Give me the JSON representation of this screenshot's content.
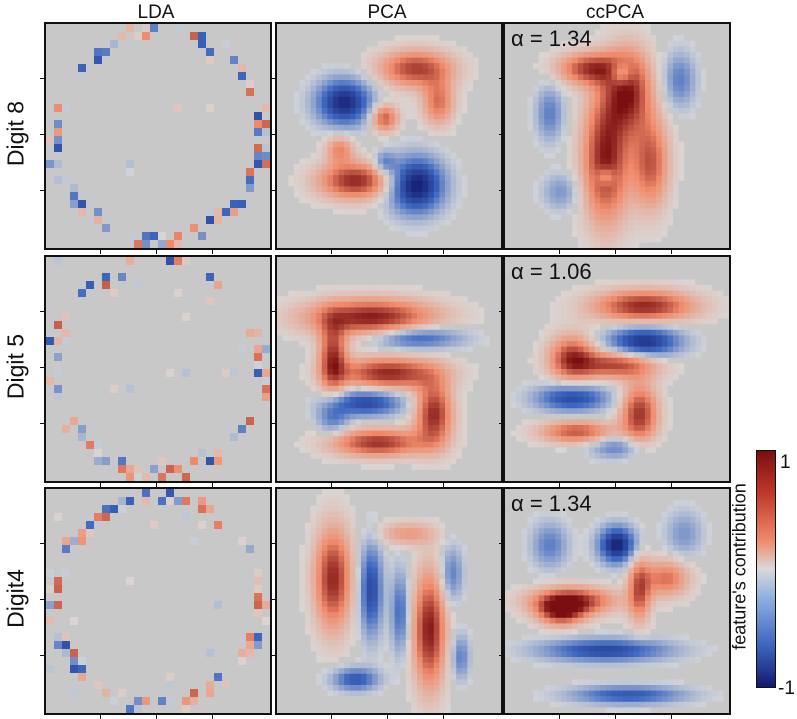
{
  "chart_data": {
    "type": "heatmap",
    "columns": [
      "LDA",
      "PCA",
      "ccPCA"
    ],
    "rows": [
      "Digit 8",
      "Digit 5",
      "Digit4"
    ],
    "panels": [
      {
        "row": "Digit 8",
        "column": "LDA",
        "annotation": ""
      },
      {
        "row": "Digit 8",
        "column": "PCA",
        "annotation": ""
      },
      {
        "row": "Digit 8",
        "column": "ccPCA",
        "annotation": "α = 1.34"
      },
      {
        "row": "Digit 5",
        "column": "LDA",
        "annotation": ""
      },
      {
        "row": "Digit 5",
        "column": "PCA",
        "annotation": ""
      },
      {
        "row": "Digit 5",
        "column": "ccPCA",
        "annotation": "α = 1.06"
      },
      {
        "row": "Digit4",
        "column": "LDA",
        "annotation": ""
      },
      {
        "row": "Digit4",
        "column": "PCA",
        "annotation": ""
      },
      {
        "row": "Digit4",
        "column": "ccPCA",
        "annotation": "α = 1.34"
      }
    ],
    "colorbar": {
      "label": "feature's contribution",
      "max_label": "1",
      "min_label": "-1",
      "range": [
        -1,
        1
      ],
      "colors": [
        "#121a6e",
        "#3d67c0",
        "#d9d9d9",
        "#f08a6a",
        "#7a0e10"
      ]
    }
  }
}
